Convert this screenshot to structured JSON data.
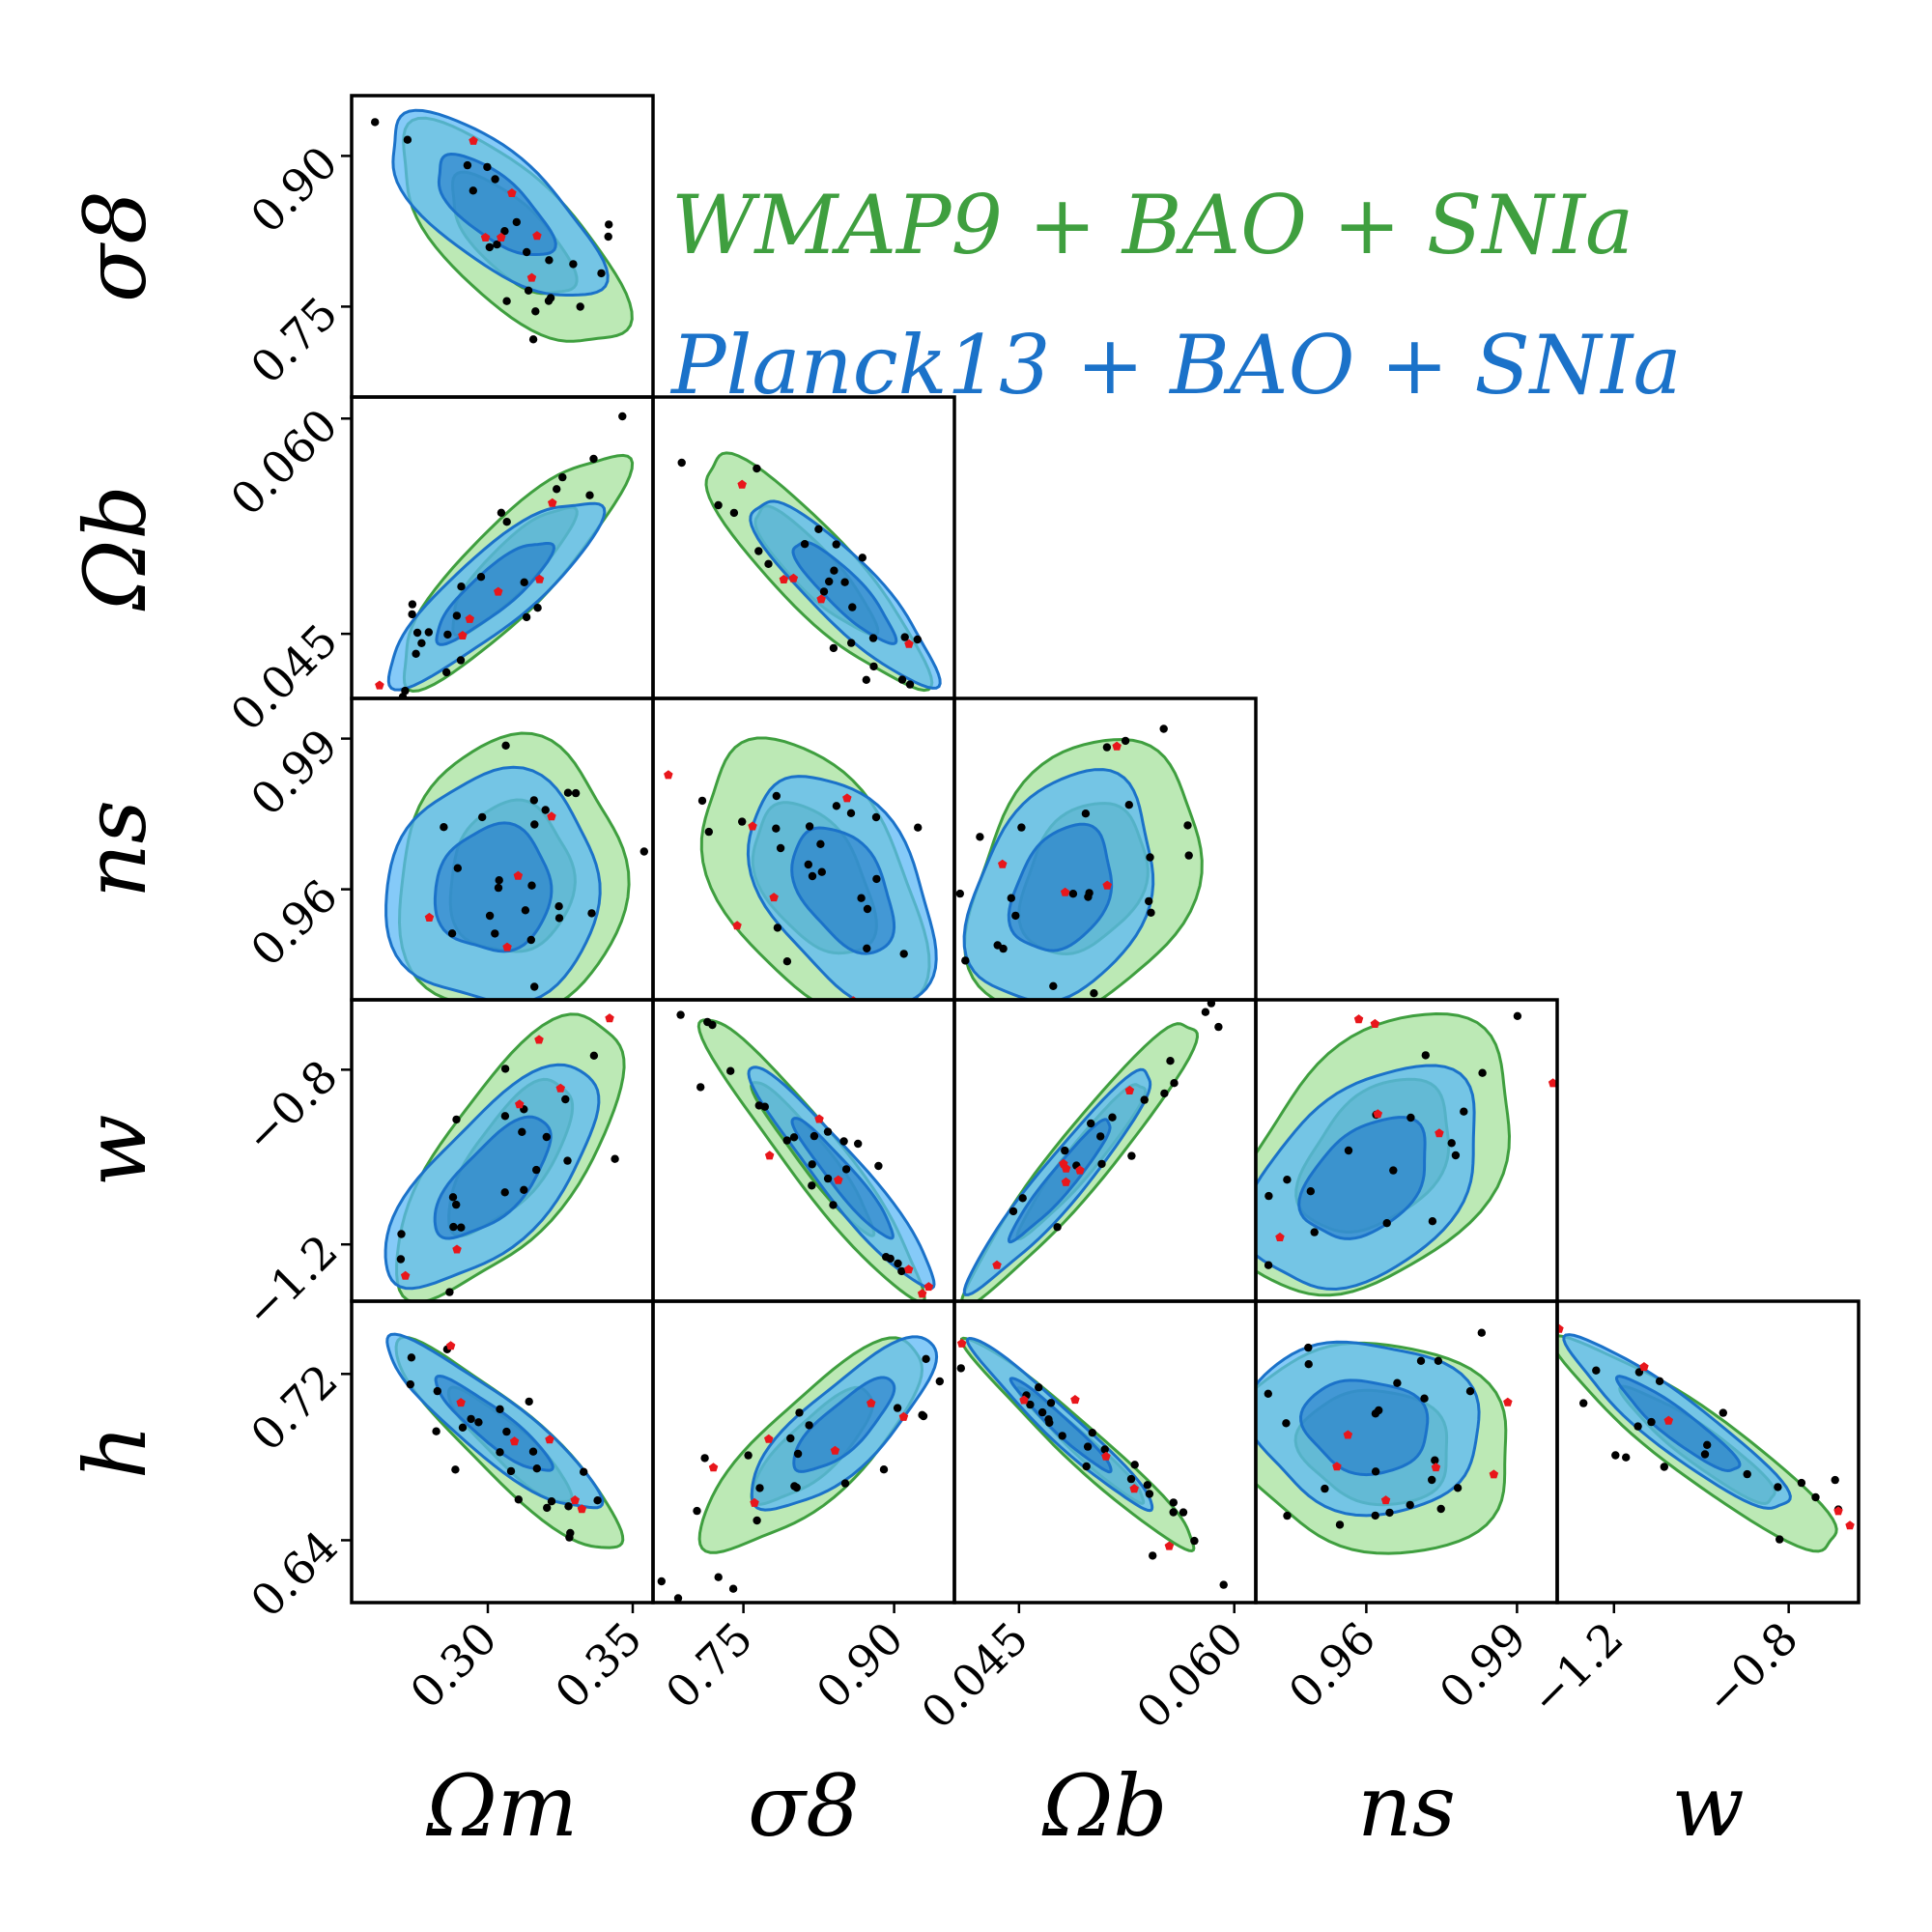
{
  "chart_data": {
    "type": "scatter",
    "subtype": "corner-plot",
    "parameters": [
      "Omega_m",
      "sigma_8",
      "Omega_b",
      "n_s",
      "w",
      "h"
    ],
    "axis_labels": {
      "Omega_m": "Ωm",
      "sigma_8": "σ8",
      "Omega_b": "Ωb",
      "n_s": "ns",
      "w": "w",
      "h": "h"
    },
    "ranges": {
      "Omega_m": [
        0.253,
        0.357
      ],
      "sigma_8": [
        0.66,
        0.96
      ],
      "Omega_b": [
        0.0405,
        0.0615
      ],
      "n_s": [
        0.938,
        0.998
      ],
      "w": [
        -1.33,
        -0.64
      ],
      "h": [
        0.61,
        0.755
      ]
    },
    "ticks": {
      "Omega_m": [
        0.3,
        0.35
      ],
      "sigma_8": [
        0.75,
        0.9
      ],
      "Omega_b": [
        0.045,
        0.06
      ],
      "n_s": [
        0.96,
        0.99
      ],
      "w": [
        -1.2,
        -0.8
      ],
      "h": [
        0.64,
        0.72
      ]
    },
    "tick_labels": {
      "Omega_m": [
        "0.30",
        "0.35"
      ],
      "sigma_8": [
        "0.75",
        "0.90"
      ],
      "Omega_b": [
        "0.045",
        "0.060"
      ],
      "n_s": [
        "0.96",
        "0.99"
      ],
      "w": [
        "−1.2",
        "−0.8"
      ],
      "h": [
        "0.64",
        "0.72"
      ]
    },
    "grid": false,
    "legend_position": "top-right",
    "series": [
      {
        "name": "WMAP9 + BAO + SNIa",
        "label": "WMAP9 + BAO + SNIa",
        "color": "#3f9f3f",
        "fill_outer": "#a6e29c",
        "fill_inner": "#3f9f3f",
        "center": {
          "Omega_m": 0.308,
          "sigma_8": 0.82,
          "Omega_b": 0.0495,
          "n_s": 0.962,
          "w": -1.0,
          "h": 0.685
        },
        "sigma": {
          "Omega_m": 0.017,
          "sigma_8": 0.048,
          "Omega_b": 0.0035,
          "n_s": 0.012,
          "w": 0.14,
          "h": 0.022
        }
      },
      {
        "name": "Planck13 + BAO + SNIa",
        "label": "Planck13 + BAO + SNIa",
        "color": "#1b72c9",
        "fill_outer": "#5cb8f5",
        "fill_inner": "#1b72c9",
        "center": {
          "Omega_m": 0.302,
          "sigma_8": 0.85,
          "Omega_b": 0.048,
          "n_s": 0.96,
          "w": -1.05,
          "h": 0.695
        },
        "sigma": {
          "Omega_m": 0.016,
          "sigma_8": 0.04,
          "Omega_b": 0.0028,
          "n_s": 0.01,
          "w": 0.11,
          "h": 0.018
        }
      }
    ],
    "correlations": {
      "sigma_8|Omega_m": -0.7,
      "Omega_b|Omega_m": 0.86,
      "Omega_b|sigma_8": -0.88,
      "n_s|Omega_m": 0.05,
      "n_s|sigma_8": -0.45,
      "n_s|Omega_b": 0.3,
      "w|Omega_m": 0.7,
      "w|sigma_8": -0.95,
      "w|Omega_b": 0.95,
      "w|n_s": 0.4,
      "h|Omega_m": -0.9,
      "h|sigma_8": 0.8,
      "h|Omega_b": -0.97,
      "h|n_s": -0.1,
      "h|w": -0.92
    },
    "samples": {
      "markers": "black dots (samples) and red pentagons (highlighted samples)",
      "black_count_per_panel": 24,
      "red_count_per_panel": 6
    }
  }
}
